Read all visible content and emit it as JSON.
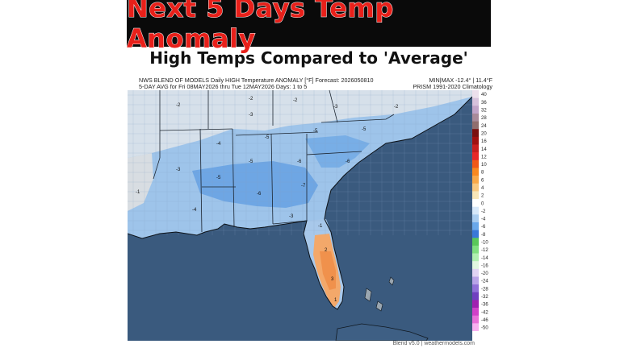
{
  "banner": {
    "title": "Next 5 Days Temp Anomaly"
  },
  "subtitle": "High Temps Compared to 'Average'",
  "header": {
    "line1_left": "NWS BLEND OF MODELS Daily HIGH Temperature ANOMALY [°F] Forecast: 2026050810",
    "line1_right": "MIN|MAX -12.4° | 11.4°F",
    "line2_left": "5-DAY AVG for Fri 08MAY2026 thru Tue 12MAY2026  Days: 1 to 5",
    "line2_right": "PRISM 1991-2020 Climatology"
  },
  "colorbar": {
    "ticks": [
      "40",
      "36",
      "32",
      "28",
      "24",
      "20",
      "16",
      "14",
      "12",
      "10",
      "8",
      "6",
      "4",
      "2",
      "0",
      "-2",
      "-4",
      "-6",
      "-8",
      "-10",
      "-12",
      "-14",
      "-16",
      "-20",
      "-24",
      "-28",
      "-32",
      "-36",
      "-42",
      "-46",
      "-50"
    ],
    "colors": [
      "#ece0ec",
      "#d6c2dc",
      "#c0a4c8",
      "#a88a9a",
      "#906e6e",
      "#7a1010",
      "#a01010",
      "#c81e1e",
      "#e82828",
      "#f05818",
      "#f88820",
      "#f8a848",
      "#f8c880",
      "#f8e6b8",
      "#ffffff",
      "#d6e8fa",
      "#a8ccf0",
      "#6aa8ea",
      "#3a78d8",
      "#5ac85a",
      "#80e080",
      "#b0f0b0",
      "#e0f8e0",
      "#e0d4f4",
      "#b8a4e8",
      "#9070d8",
      "#7040c0",
      "#a020b0",
      "#d040c8",
      "#e870d8",
      "#f8b0f0"
    ]
  },
  "map": {
    "ocean_color": "#3a5a7e",
    "land_anomaly_labels": [
      {
        "name": "oh-west",
        "v": "-2"
      },
      {
        "name": "oh-east",
        "v": "-2"
      },
      {
        "name": "wv",
        "v": "-3"
      },
      {
        "name": "va",
        "v": "-2"
      },
      {
        "name": "ky",
        "v": "-3"
      },
      {
        "name": "tn-west",
        "v": "-4"
      },
      {
        "name": "tn-east",
        "v": "-5"
      },
      {
        "name": "nc-mtn",
        "v": "-5"
      },
      {
        "name": "nc-pied",
        "v": "-5"
      },
      {
        "name": "sc",
        "v": "-6"
      },
      {
        "name": "ga-north",
        "v": "-6"
      },
      {
        "name": "ga-south",
        "v": "-7"
      },
      {
        "name": "al-north",
        "v": "-5"
      },
      {
        "name": "al-south",
        "v": "-6"
      },
      {
        "name": "ms",
        "v": "-5"
      },
      {
        "name": "la",
        "v": "-4"
      },
      {
        "name": "ar",
        "v": "-3"
      },
      {
        "name": "tx-east",
        "v": "-1"
      },
      {
        "name": "fl-panhandle",
        "v": "-3"
      },
      {
        "name": "fl-north",
        "v": "-1"
      },
      {
        "name": "fl-central",
        "v": "2"
      },
      {
        "name": "fl-south",
        "v": "3"
      },
      {
        "name": "fl-keys",
        "v": "1"
      },
      {
        "name": "il",
        "v": "-2"
      }
    ]
  },
  "footer": "Blend v5.0 | weathermodels.com"
}
